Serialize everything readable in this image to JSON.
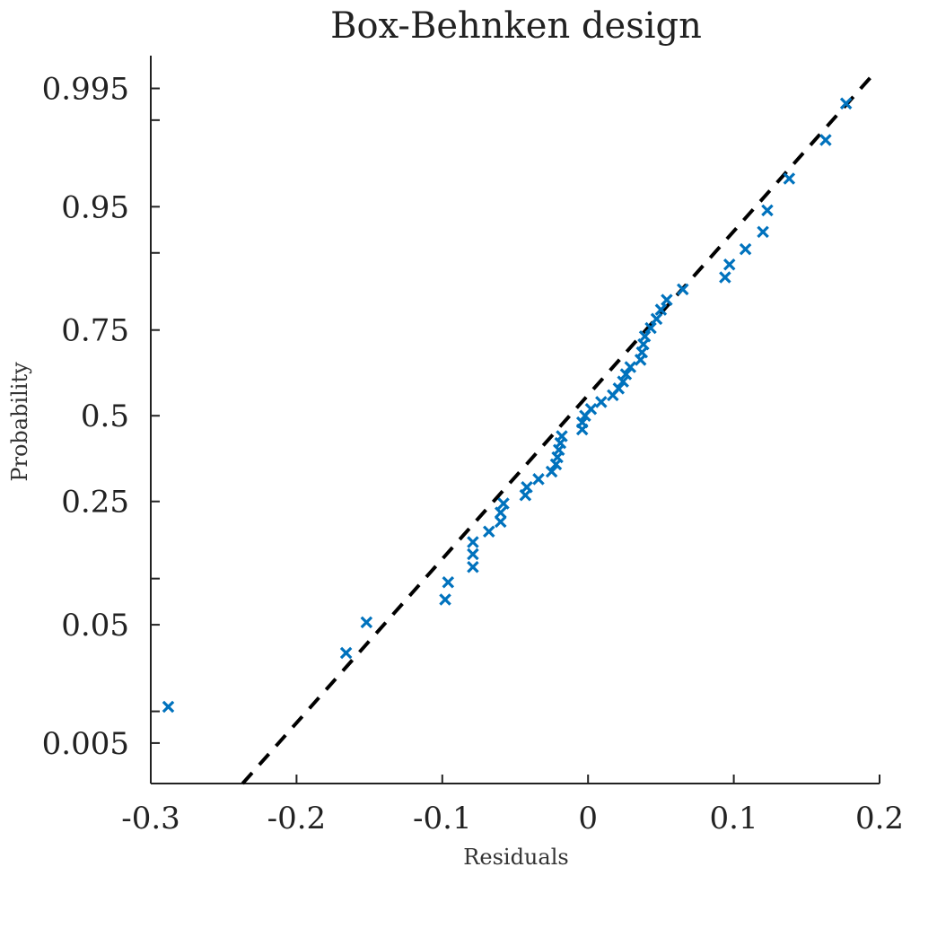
{
  "chart_data": {
    "type": "scatter",
    "title": "Box-Behnken design",
    "xlabel": "Residuals",
    "ylabel": "Probability",
    "xlim": [
      -0.3,
      0.2
    ],
    "x_ticks": [
      -0.3,
      -0.2,
      -0.1,
      0,
      0.1,
      0.2
    ],
    "x_tick_labels": [
      "-0.3",
      "-0.2",
      "-0.1",
      "0",
      "0.1",
      "0.2"
    ],
    "y_scale": "normal-probability",
    "ylim": [
      0.0019,
      0.9977
    ],
    "y_ticks": [
      0.005,
      0.01,
      0.05,
      0.1,
      0.25,
      0.5,
      0.75,
      0.9,
      0.95,
      0.99,
      0.995
    ],
    "y_tick_labels": [
      "0.005",
      "",
      "0.05",
      "",
      "0.25",
      "0.5",
      "0.75",
      "",
      "0.95",
      "",
      "0.995"
    ],
    "grid": false,
    "marker_color": "#0072BD",
    "reference_line_color": "#000000",
    "reference_line": {
      "points": [
        [
          -0.237,
          0.0019
        ],
        [
          0.198,
          0.9967
        ]
      ]
    },
    "series": [
      {
        "marker": "x",
        "points": [
          [
            -0.288,
            0.011
          ],
          [
            -0.166,
            0.031
          ],
          [
            -0.152,
            0.052
          ],
          [
            -0.098,
            0.074
          ],
          [
            -0.096,
            0.095
          ],
          [
            -0.079,
            0.117
          ],
          [
            -0.079,
            0.138
          ],
          [
            -0.079,
            0.16
          ],
          [
            -0.068,
            0.181
          ],
          [
            -0.06,
            0.202
          ],
          [
            -0.06,
            0.223
          ],
          [
            -0.058,
            0.245
          ],
          [
            -0.043,
            0.266
          ],
          [
            -0.042,
            0.287
          ],
          [
            -0.034,
            0.309
          ],
          [
            -0.025,
            0.33
          ],
          [
            -0.022,
            0.351
          ],
          [
            -0.021,
            0.372
          ],
          [
            -0.02,
            0.394
          ],
          [
            -0.019,
            0.415
          ],
          [
            -0.018,
            0.436
          ],
          [
            -0.004,
            0.457
          ],
          [
            -0.004,
            0.479
          ],
          [
            -0.002,
            0.5
          ],
          [
            0.002,
            0.521
          ],
          [
            0.009,
            0.543
          ],
          [
            0.017,
            0.564
          ],
          [
            0.021,
            0.585
          ],
          [
            0.024,
            0.606
          ],
          [
            0.026,
            0.628
          ],
          [
            0.029,
            0.649
          ],
          [
            0.036,
            0.67
          ],
          [
            0.037,
            0.691
          ],
          [
            0.038,
            0.713
          ],
          [
            0.039,
            0.734
          ],
          [
            0.043,
            0.755
          ],
          [
            0.047,
            0.777
          ],
          [
            0.05,
            0.798
          ],
          [
            0.054,
            0.819
          ],
          [
            0.065,
            0.84
          ],
          [
            0.094,
            0.862
          ],
          [
            0.097,
            0.883
          ],
          [
            0.108,
            0.905
          ],
          [
            0.12,
            0.926
          ],
          [
            0.123,
            0.947
          ],
          [
            0.138,
            0.969
          ],
          [
            0.163,
            0.985
          ],
          [
            0.177,
            0.993
          ]
        ]
      }
    ]
  }
}
